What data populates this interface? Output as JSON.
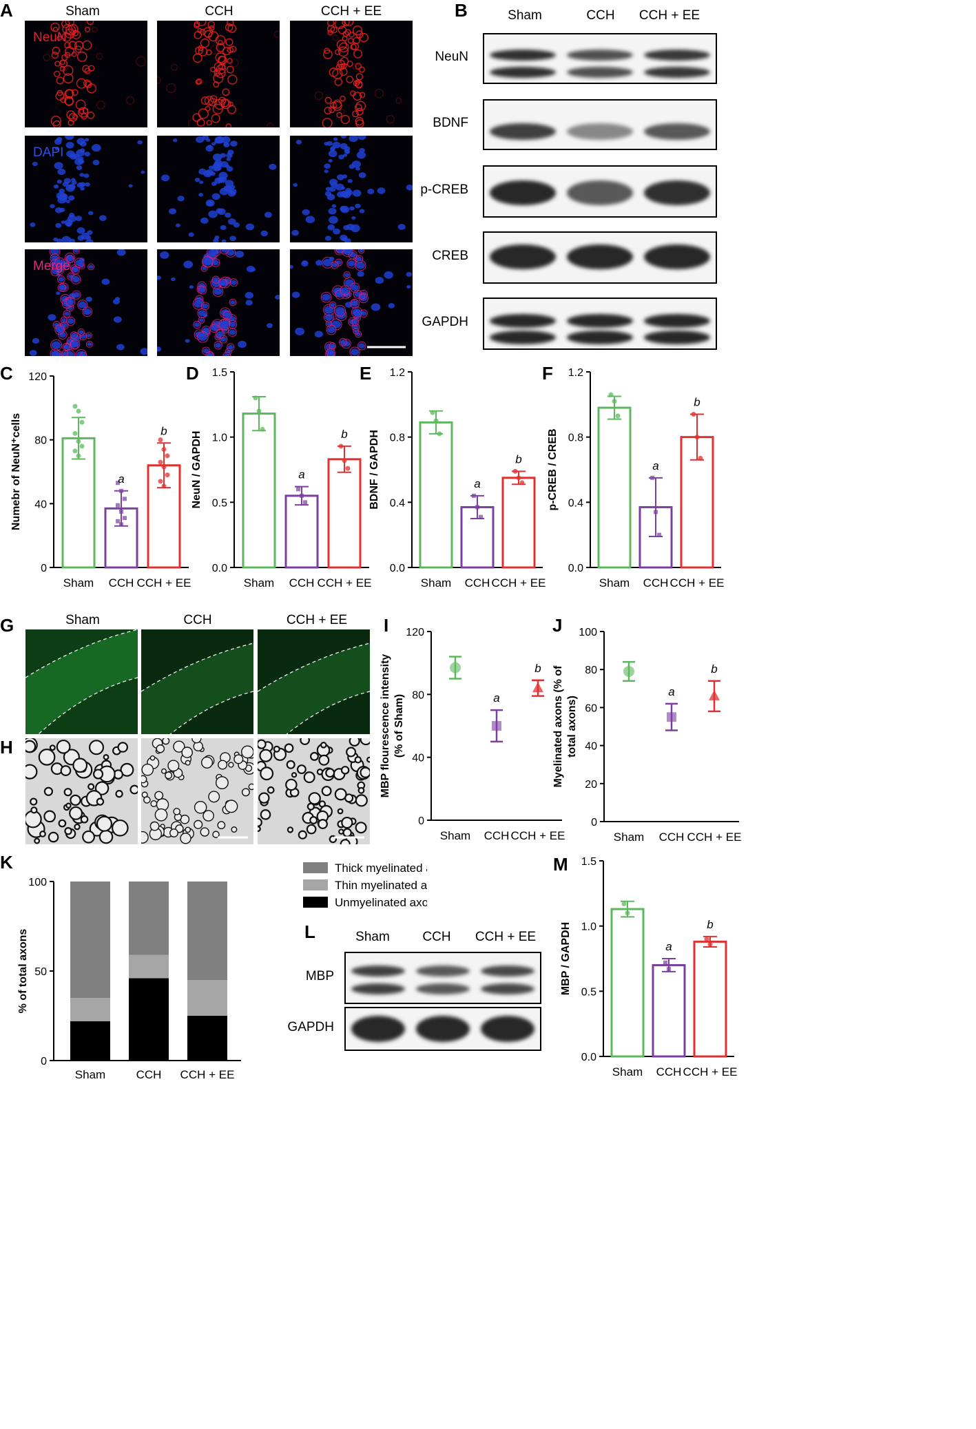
{
  "panels": {
    "A": "A",
    "B": "B",
    "C": "C",
    "D": "D",
    "E": "E",
    "F": "F",
    "G": "G",
    "H": "H",
    "I": "I",
    "J": "J",
    "K": "K",
    "L": "L",
    "M": "M"
  },
  "groups": [
    "Sham",
    "CCH",
    "CCH + EE"
  ],
  "colors": {
    "sham": "#5cb85c",
    "cch": "#7b3fa0",
    "ee": "#e03030",
    "stain_neun": "#e02020",
    "stain_dapi": "#2040d0",
    "stain_merge": "#d02080",
    "mbp_green": "#1e7a2c"
  },
  "panelA": {
    "rows": [
      {
        "stain": "NeuN",
        "label_color": "#e02030"
      },
      {
        "stain": "DAPI",
        "label_color": "#3050e0"
      },
      {
        "stain": "Merge",
        "label_color": "#e02a80"
      }
    ]
  },
  "panelB": {
    "bands": [
      "NeuN",
      "BDNF",
      "p-CREB",
      "CREB",
      "GAPDH"
    ]
  },
  "panelL": {
    "bands": [
      "MBP",
      "GAPDH"
    ]
  },
  "chart_data": [
    {
      "panel": "C",
      "type": "bar",
      "categories": [
        "Sham",
        "CCH",
        "CCH + EE"
      ],
      "values": [
        81,
        37,
        64
      ],
      "errors": [
        13,
        11,
        14
      ],
      "ylabel": "Numebr of NeuN⁺cells",
      "ylim": [
        0,
        120
      ],
      "yticks": [
        "0",
        "40",
        "80",
        "120"
      ],
      "annotations": [
        "",
        "a",
        "b"
      ],
      "points": [
        [
          101,
          98,
          91,
          84,
          79,
          76,
          73,
          70
        ],
        [
          53,
          48,
          43,
          39,
          35,
          31,
          29,
          27
        ],
        [
          80,
          74,
          70,
          66,
          63,
          58,
          54,
          51
        ]
      ]
    },
    {
      "panel": "D",
      "type": "bar",
      "categories": [
        "Sham",
        "CCH",
        "CCH + EE"
      ],
      "values": [
        1.18,
        0.55,
        0.83
      ],
      "errors": [
        0.13,
        0.07,
        0.1
      ],
      "ylabel": "NeuN / GAPDH",
      "ylim": [
        0,
        1.5
      ],
      "yticks": [
        "0.0",
        "0.5",
        "1.0",
        "1.5"
      ],
      "annotations": [
        "",
        "a",
        "b"
      ],
      "points": [
        [
          1.3,
          1.2,
          1.06
        ],
        [
          0.6,
          0.55,
          0.5
        ],
        [
          0.93,
          0.82,
          0.76
        ]
      ]
    },
    {
      "panel": "E",
      "type": "bar",
      "categories": [
        "Sham",
        "CCH",
        "CCH + EE"
      ],
      "values": [
        0.89,
        0.37,
        0.55
      ],
      "errors": [
        0.07,
        0.07,
        0.04
      ],
      "ylabel": "BDNF / GAPDH",
      "ylim": [
        0,
        1.2
      ],
      "yticks": [
        "0.0",
        "0.4",
        "0.8",
        "1.2"
      ],
      "annotations": [
        "",
        "a",
        "b"
      ],
      "points": [
        [
          0.95,
          0.9,
          0.82
        ],
        [
          0.44,
          0.37,
          0.31
        ],
        [
          0.59,
          0.55,
          0.52
        ]
      ]
    },
    {
      "panel": "F",
      "type": "bar",
      "categories": [
        "Sham",
        "CCH",
        "CCH + EE"
      ],
      "values": [
        0.98,
        0.37,
        0.8
      ],
      "errors": [
        0.07,
        0.18,
        0.14
      ],
      "ylabel": "p-CREB / CREB",
      "ylim": [
        0,
        1.2
      ],
      "yticks": [
        "0.0",
        "0.4",
        "0.8",
        "1.2"
      ],
      "annotations": [
        "",
        "a",
        "b"
      ],
      "points": [
        [
          1.06,
          1.02,
          0.93
        ],
        [
          0.55,
          0.34,
          0.2
        ],
        [
          0.94,
          0.8,
          0.67
        ]
      ]
    },
    {
      "panel": "I",
      "type": "scatter",
      "categories": [
        "Sham",
        "CCH",
        "CCH + EE"
      ],
      "values": [
        97,
        60,
        84
      ],
      "errors": [
        7,
        10,
        5
      ],
      "ylabel_lines": [
        "MBP flourescence intensity",
        "(% of Sham)"
      ],
      "ylim": [
        0,
        120
      ],
      "yticks": [
        "0",
        "40",
        "80",
        "120"
      ],
      "annotations": [
        "",
        "a",
        "b"
      ],
      "markers": [
        "circle",
        "square",
        "triangle"
      ]
    },
    {
      "panel": "J",
      "type": "scatter",
      "categories": [
        "Sham",
        "CCH",
        "CCH + EE"
      ],
      "values": [
        79,
        55,
        66
      ],
      "errors": [
        5,
        7,
        8
      ],
      "ylabel_lines": [
        "Myelinated axons (% of",
        "total axons)"
      ],
      "ylim": [
        0,
        100
      ],
      "yticks": [
        "0",
        "20",
        "40",
        "60",
        "80",
        "100"
      ],
      "annotations": [
        "",
        "a",
        "b"
      ],
      "markers": [
        "circle",
        "square",
        "triangle"
      ]
    },
    {
      "panel": "K",
      "type": "bar",
      "stacked": true,
      "categories": [
        "Sham",
        "CCH",
        "CCH + EE"
      ],
      "ylabel": "% of total axons",
      "ylim": [
        0,
        100
      ],
      "yticks": [
        "0",
        "50",
        "100"
      ],
      "series": [
        {
          "name": "Unmyelinated axons",
          "color": "#000000",
          "values": [
            22,
            46,
            25
          ]
        },
        {
          "name": "Thin  myelinated axons",
          "color": "#a6a6a6",
          "values": [
            13,
            13,
            20
          ]
        },
        {
          "name": "Thick  myelinated axons",
          "color": "#808080",
          "values": [
            65,
            41,
            55
          ]
        }
      ],
      "legend_order": [
        "Thick  myelinated axons",
        "Thin  myelinated axons",
        "Unmyelinated axons"
      ]
    },
    {
      "panel": "M",
      "type": "bar",
      "categories": [
        "Sham",
        "CCH",
        "CCH + EE"
      ],
      "values": [
        1.13,
        0.7,
        0.88
      ],
      "errors": [
        0.06,
        0.05,
        0.04
      ],
      "ylabel": "MBP / GAPDH",
      "ylim": [
        0,
        1.5
      ],
      "yticks": [
        "0.0",
        "0.5",
        "1.0",
        "1.5"
      ],
      "annotations": [
        "",
        "a",
        "b"
      ],
      "points": [
        [
          1.17,
          1.1
        ],
        [
          0.72,
          0.67
        ],
        [
          0.9,
          0.86
        ]
      ]
    }
  ]
}
